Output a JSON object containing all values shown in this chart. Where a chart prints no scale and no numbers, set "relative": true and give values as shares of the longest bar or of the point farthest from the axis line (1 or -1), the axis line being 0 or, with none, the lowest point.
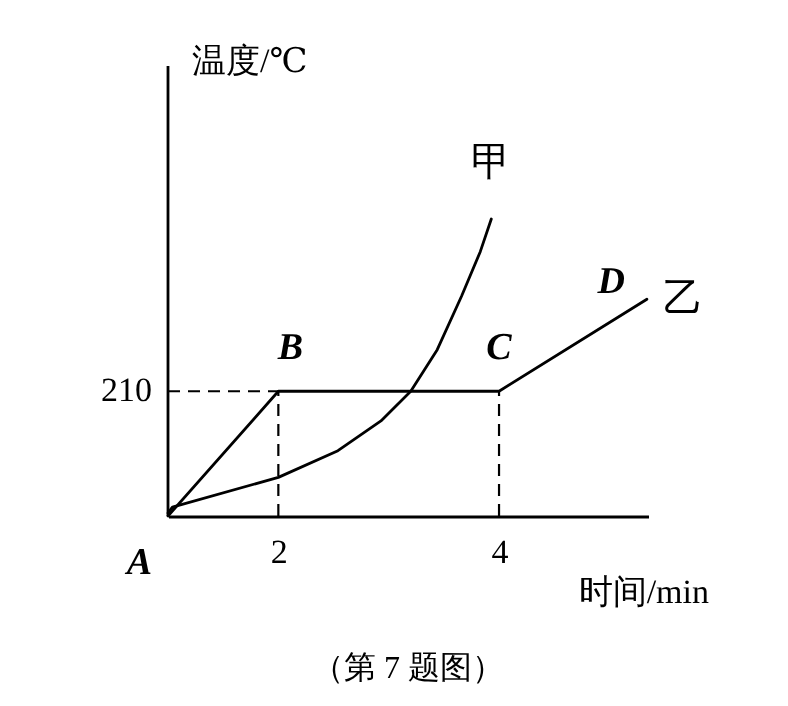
{
  "chart_data": {
    "type": "line",
    "xlabel": "时间/min",
    "ylabel": "温度/℃",
    "xlim": [
      1.0,
      5.35
    ],
    "xticks": [
      2,
      4
    ],
    "relative": true,
    "grid": false,
    "legend": false,
    "marker": "none",
    "line_style": "solid",
    "series": [
      {
        "name": "甲",
        "color": "#000000",
        "x": [
          1.0,
          1.04,
          2.0,
          2.54,
          2.93,
          3.2,
          3.44,
          3.66,
          3.83,
          3.93
        ],
        "values": [
          0.01,
          0.03,
          0.13,
          0.22,
          0.32,
          0.42,
          0.56,
          0.74,
          0.89,
          1
        ]
      },
      {
        "name": "乙",
        "color": "#000000",
        "x": [
          1.0,
          2.0,
          4.0,
          5.34
        ],
        "values": [
          0,
          0.42,
          0.42,
          0.73
        ]
      }
    ],
    "ref_lines": [
      {
        "axis": "y",
        "value": 0.42,
        "line_style": "dashed"
      },
      {
        "axis": "x",
        "value": 2,
        "line_style": "dashed"
      },
      {
        "axis": "x",
        "value": 4,
        "line_style": "dashed"
      }
    ],
    "annotations": [
      {
        "text": "210",
        "x": 1.0,
        "y": 0.42
      },
      {
        "text": "A",
        "x": 1.0,
        "y": 0
      },
      {
        "text": "B",
        "x": 2,
        "y": 0.42
      },
      {
        "text": "C",
        "x": 4,
        "y": 0.42
      },
      {
        "text": "D",
        "x": 5.09,
        "y": 0.67
      },
      "（第 7 题图）"
    ]
  }
}
